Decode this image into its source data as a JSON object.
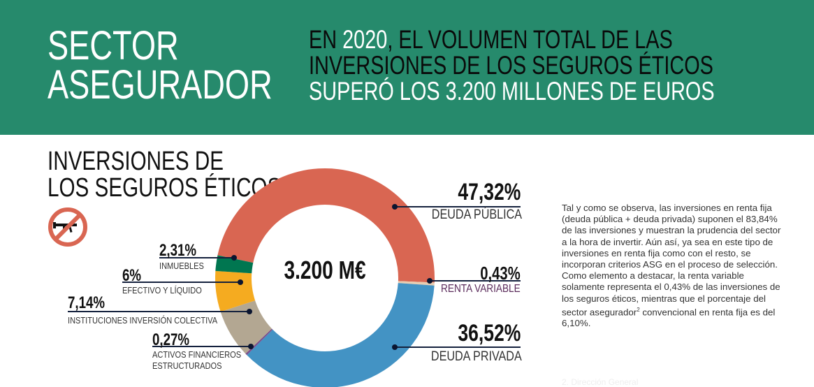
{
  "header": {
    "title_line1": "SECTOR",
    "title_line2": "ASEGURADOR",
    "headline_line1_a": "EN ",
    "headline_line1_year": "2020",
    "headline_line1_b": ", EL VOLUMEN TOTAL DE LAS",
    "headline_line2": "INVERSIONES DE LOS SEGUROS ÉTICOS",
    "headline_line3": "SUPERÓ LOS 3.200 MILLONES DE EUROS",
    "background_color": "#268a6c"
  },
  "icon": "no-weapons-icon",
  "chart_data": {
    "type": "pie",
    "donut": true,
    "title_line1": "INVERSIONES DE",
    "title_line2": "LOS SEGUROS ÉTICOS",
    "center_label": "3.200 M€",
    "slices": [
      {
        "name": "DEUDA PÚBLICA",
        "value": 47.32,
        "label": "47,32%",
        "color": "#d96652"
      },
      {
        "name": "RENTA VARIABLE",
        "value": 0.43,
        "label": "0,43%",
        "color": "#e8cdb2"
      },
      {
        "name": "DEUDA PRIVADA",
        "value": 36.52,
        "label": "36,52%",
        "color": "#4393c4"
      },
      {
        "name_line1": "ACTIVOS FINANCIEROS",
        "name_line2": "ESTRUCTURADOS",
        "value": 0.27,
        "label": "0,27%",
        "color": "#7b4f8c"
      },
      {
        "name": "INSTITUCIONES INVERSIÓN COLECTIVA",
        "value": 7.14,
        "label": "7,14%",
        "color": "#b3a792"
      },
      {
        "name": "EFECTIVO Y LÍQUIDO",
        "value": 6,
        "label": "6%",
        "color": "#f5ab20"
      },
      {
        "name": "INMUEBLES",
        "value": 2.31,
        "label": "2,31%",
        "color": "#007650"
      }
    ]
  },
  "body_text_a": "Tal y como se observa, las inversiones en renta fija (deuda pública + deuda privada) suponen el 83,84% de las inversiones y muestran la prudencia del sector a la hora de invertir. Aún así, ya sea en este tipo de inversiones en renta fija como con el resto, se incorporan criterios ASG en el proceso de selección. Como elemento a destacar, la renta variable solamente representa el 0,43% de las inversiones de los seguros éticos, mientras que el porcentaje del sector asegurador",
  "body_text_sup": "2",
  "body_text_b": " convencional en renta fija es del 6,10%.",
  "footnote": "2. Dirección General"
}
